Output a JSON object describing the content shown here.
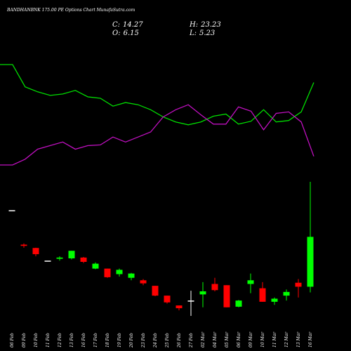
{
  "chart_data": {
    "type": "candlestick",
    "title": "BANDHANBNK 175.00 PE Options Chart MunafaSutra.com",
    "stats": [
      {
        "label": "C:",
        "value": 14.27
      },
      {
        "label": "H:",
        "value": 23.23
      },
      {
        "label": "O:",
        "value": 6.15
      },
      {
        "label": "L:",
        "value": 5.23
      }
    ],
    "categories": [
      "06 Feb",
      "09 Feb",
      "10 Feb",
      "11 Feb",
      "12 Feb",
      "13 Feb",
      "16 Feb",
      "17 Feb",
      "18 Feb",
      "19 Feb",
      "20 Feb",
      "23 Feb",
      "24 Feb",
      "25 Feb",
      "26 Feb",
      "27 Feb",
      "02 Mar",
      "04 Mar",
      "05 Mar",
      "06 Mar",
      "09 Mar",
      "10 Mar",
      "11 Mar",
      "12 Mar",
      "13 Mar",
      "16 Mar"
    ],
    "open": [
      18.6,
      13.0,
      12.46,
      10.4,
      10.7,
      10.77,
      10.9,
      9.1,
      9.1,
      8.2,
      7.6,
      7.2,
      6.3,
      4.7,
      3.1,
      3.9,
      4.9,
      6.6,
      6.4,
      2.9,
      6.6,
      5.9,
      3.7,
      4.7,
      6.8,
      6.15
    ],
    "close": [
      18.6,
      12.8,
      11.45,
      10.4,
      10.9,
      12.0,
      10.2,
      9.9,
      7.7,
      8.9,
      8.3,
      6.7,
      4.7,
      3.6,
      2.65,
      3.9,
      5.4,
      5.6,
      2.8,
      3.9,
      7.2,
      3.7,
      4.2,
      5.3,
      6.15,
      14.27
    ],
    "high": [
      18.6,
      13.2,
      12.5,
      10.4,
      11.1,
      12.0,
      11.0,
      10.1,
      9.1,
      9.1,
      8.4,
      7.4,
      6.3,
      4.7,
      3.1,
      5.5,
      6.9,
      7.6,
      6.4,
      4.0,
      8.3,
      6.9,
      4.4,
      5.7,
      7.4,
      23.23
    ],
    "low": [
      18.6,
      12.5,
      11.1,
      10.4,
      10.4,
      10.6,
      10.0,
      9.0,
      7.6,
      7.8,
      7.2,
      6.4,
      4.6,
      3.4,
      2.3,
      1.4,
      2.8,
      5.4,
      2.8,
      2.8,
      5.1,
      3.7,
      3.2,
      3.9,
      4.4,
      5.23
    ],
    "colors": {
      "up": "#00ff00",
      "down": "#ff0000",
      "flat": "#ffffff"
    },
    "series": [
      {
        "color": "#00dd00",
        "values": [
          208,
          208,
          177,
          170,
          165,
          167,
          172,
          163,
          161,
          150,
          155,
          152,
          145,
          135,
          128,
          124,
          128,
          136,
          139,
          125,
          129,
          145,
          128,
          130,
          142,
          183
        ]
      },
      {
        "color": "#c010c0",
        "values": [
          68,
          68,
          76,
          90,
          95,
          100,
          90,
          95,
          96,
          107,
          100,
          107,
          114,
          135,
          145,
          152,
          138,
          125,
          125,
          149,
          143,
          117,
          140,
          142,
          128,
          80
        ]
      }
    ]
  }
}
